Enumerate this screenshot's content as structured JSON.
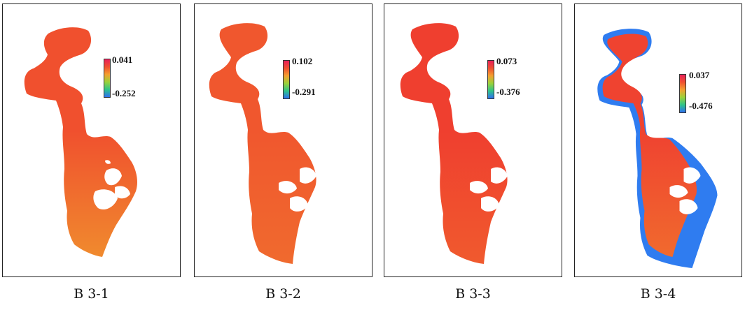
{
  "panels": [
    {
      "caption": "B 3-1",
      "max_label": "0.041",
      "min_label": "-0.252",
      "colors": {
        "north": "#f0502e",
        "south": "#f08a2e",
        "edge": "#f3a834"
      }
    },
    {
      "caption": "B 3-2",
      "max_label": "0.102",
      "min_label": "-0.291",
      "colors": {
        "north": "#f0572e",
        "south": "#f06a2e",
        "edge": "#f06a2e"
      }
    },
    {
      "caption": "B 3-3",
      "max_label": "0.073",
      "min_label": "-0.376",
      "colors": {
        "north": "#ef3f2f",
        "south": "#f05a2e",
        "edge": "#f05a2e"
      }
    },
    {
      "caption": "B 3-4",
      "max_label": "0.037",
      "min_label": "-0.476",
      "colors": {
        "north": "#ef4330",
        "south": "#f16a2e",
        "edge": "#2f7cf0"
      }
    }
  ],
  "colorbar": {
    "gradient": [
      "#e8205a",
      "#f05030",
      "#f4a030",
      "#9ad23a",
      "#2ec48a",
      "#2f6ff0"
    ]
  }
}
